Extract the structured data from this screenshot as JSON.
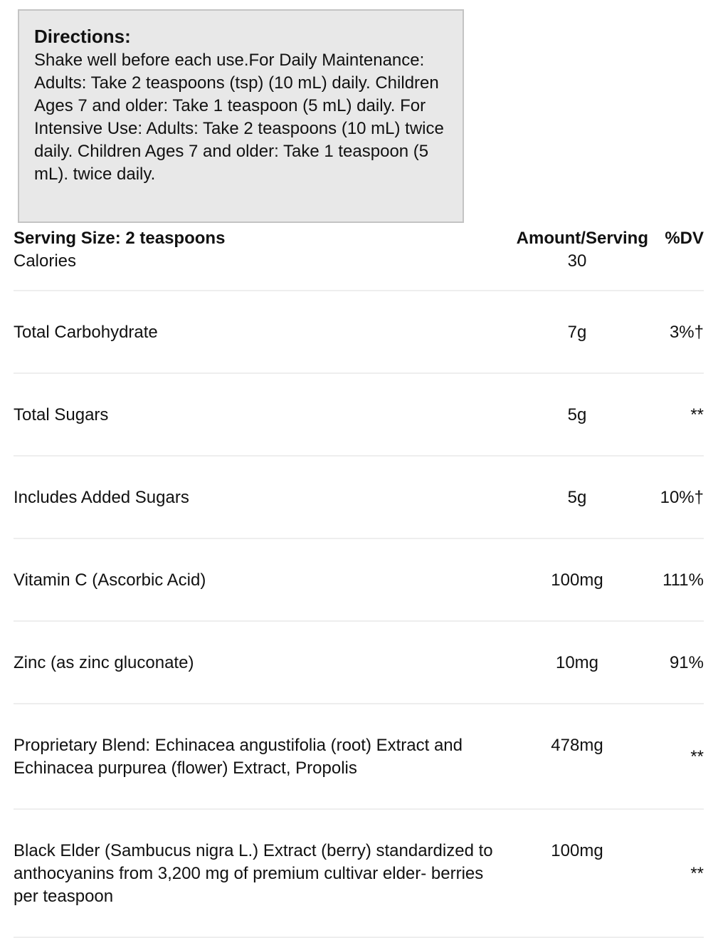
{
  "directions": {
    "title": "Directions:",
    "text": "Shake well before each use.For Daily Maintenance: Adults: Take 2 teaspoons (tsp) (10 mL) daily. Children Ages 7 and older: Take 1 teaspoon (5 mL) daily. For Intensive Use: Adults: Take 2 teaspoons (10 mL) twice daily. Children Ages 7 and older: Take 1 teaspoon (5 mL). twice daily."
  },
  "table": {
    "header": {
      "serving_size": "Serving Size: 2 teaspoons",
      "amount": "Amount/Serving",
      "dv": "%DV"
    },
    "rows": [
      [
        "Calories",
        "30"
      ],
      [
        "Total Carbohydrate",
        "7g",
        "3%†"
      ],
      [
        "Total Sugars",
        "5g",
        "**"
      ],
      [
        "Includes Added Sugars",
        "5g",
        "10%†"
      ],
      [
        "Vitamin C (Ascorbic Acid)",
        "100mg",
        "111%"
      ],
      [
        "Zinc (as zinc gluconate)",
        "10mg",
        "91%"
      ],
      [
        "Proprietary Blend: Echinacea angustifolia (root) Extract and Echinacea purpurea (flower) Extract, Propolis",
        "478mg",
        "**"
      ],
      [
        "Black Elder (Sambucus nigra L.) Extract (berry) standardized to anthocyanins from 3,200 mg of premium cultivar elder- berries per teaspoon",
        "100mg",
        "**"
      ]
    ]
  }
}
